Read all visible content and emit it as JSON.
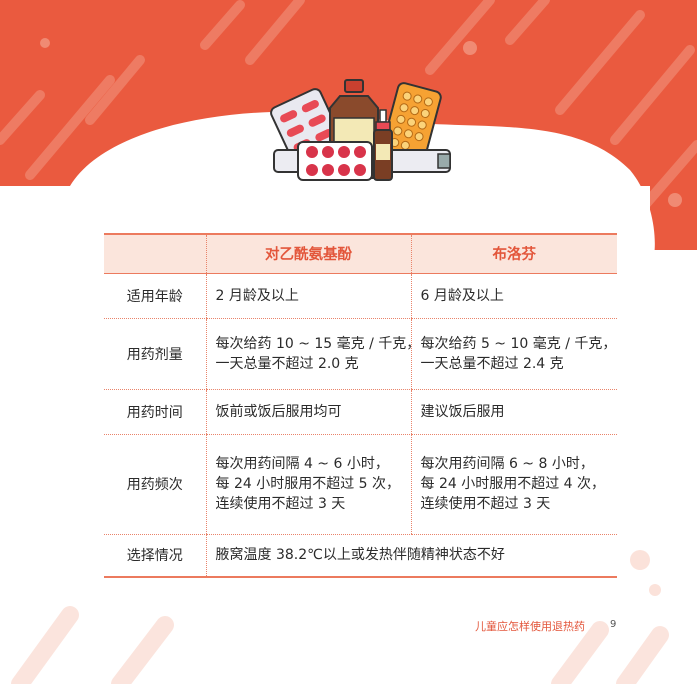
{
  "table": {
    "headers": [
      "",
      "对乙酰氨基酚",
      "布洛芬"
    ],
    "rows": {
      "age": {
        "label": "适用年龄",
        "a": [
          "2 月龄及以上"
        ],
        "b": [
          "6 月龄及以上"
        ]
      },
      "dose": {
        "label": "用药剂量",
        "a": [
          "每次给药 10 ~ 15 毫克 / 千克，",
          "一天总量不超过 2.0 克"
        ],
        "b": [
          "每次给药 5 ~ 10 毫克 / 千克，",
          "一天总量不超过 2.4 克"
        ]
      },
      "time": {
        "label": "用药时间",
        "a": [
          "饭前或饭后服用均可"
        ],
        "b": [
          "建议饭后服用"
        ]
      },
      "freq": {
        "label": "用药频次",
        "a": [
          "每次用药间隔 4 ~ 6 小时，",
          "每 24 小时服用不超过 5 次，",
          "连续使用不超过 3 天"
        ],
        "b": [
          "每次用药间隔 6 ~ 8 小时，",
          "每 24 小时服用不超过 4 次，",
          "连续使用不超过 3 天"
        ]
      },
      "choice": {
        "label": "选择情况",
        "merged": "腋窝温度 38.2℃以上或发热伴随精神状态不好"
      }
    }
  },
  "footer": {
    "title": "儿童应怎样使用退热药",
    "page": "9"
  },
  "illustration": {
    "icon": "medicine-bottles-illustration"
  },
  "colors": {
    "accent": "#ea5a3f",
    "header_bg": "#fbe5dc",
    "header_text": "#e3563b"
  }
}
